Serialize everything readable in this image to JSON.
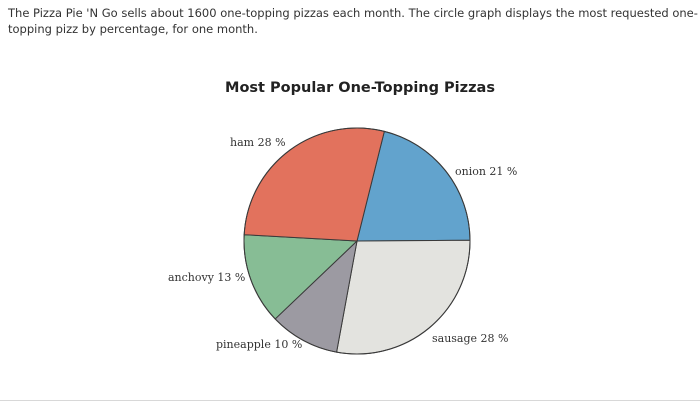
{
  "intro_text": "The Pizza Pie 'N Go sells about 1600 one-topping pizzas each month. The circle graph displays the most requested one-topping pizz by percentage, for one month.",
  "chart_data": {
    "type": "pie",
    "title": "Most Popular One-Topping Pizzas",
    "slices": [
      {
        "label": "onion",
        "value": 21,
        "display": "onion 21 %",
        "color": "#62a3cd"
      },
      {
        "label": "sausage",
        "value": 28,
        "display": "sausage 28 %",
        "color": "#e3e3df"
      },
      {
        "label": "pineapple",
        "value": 10,
        "display": "pineapple 10 %",
        "color": "#9c9aa2"
      },
      {
        "label": "anchovy",
        "value": 13,
        "display": "anchovy 13 %",
        "color": "#87bd95"
      },
      {
        "label": "ham",
        "value": 28,
        "display": "ham 28 %",
        "color": "#e2725d"
      }
    ],
    "unit": "%",
    "legend": "none"
  }
}
